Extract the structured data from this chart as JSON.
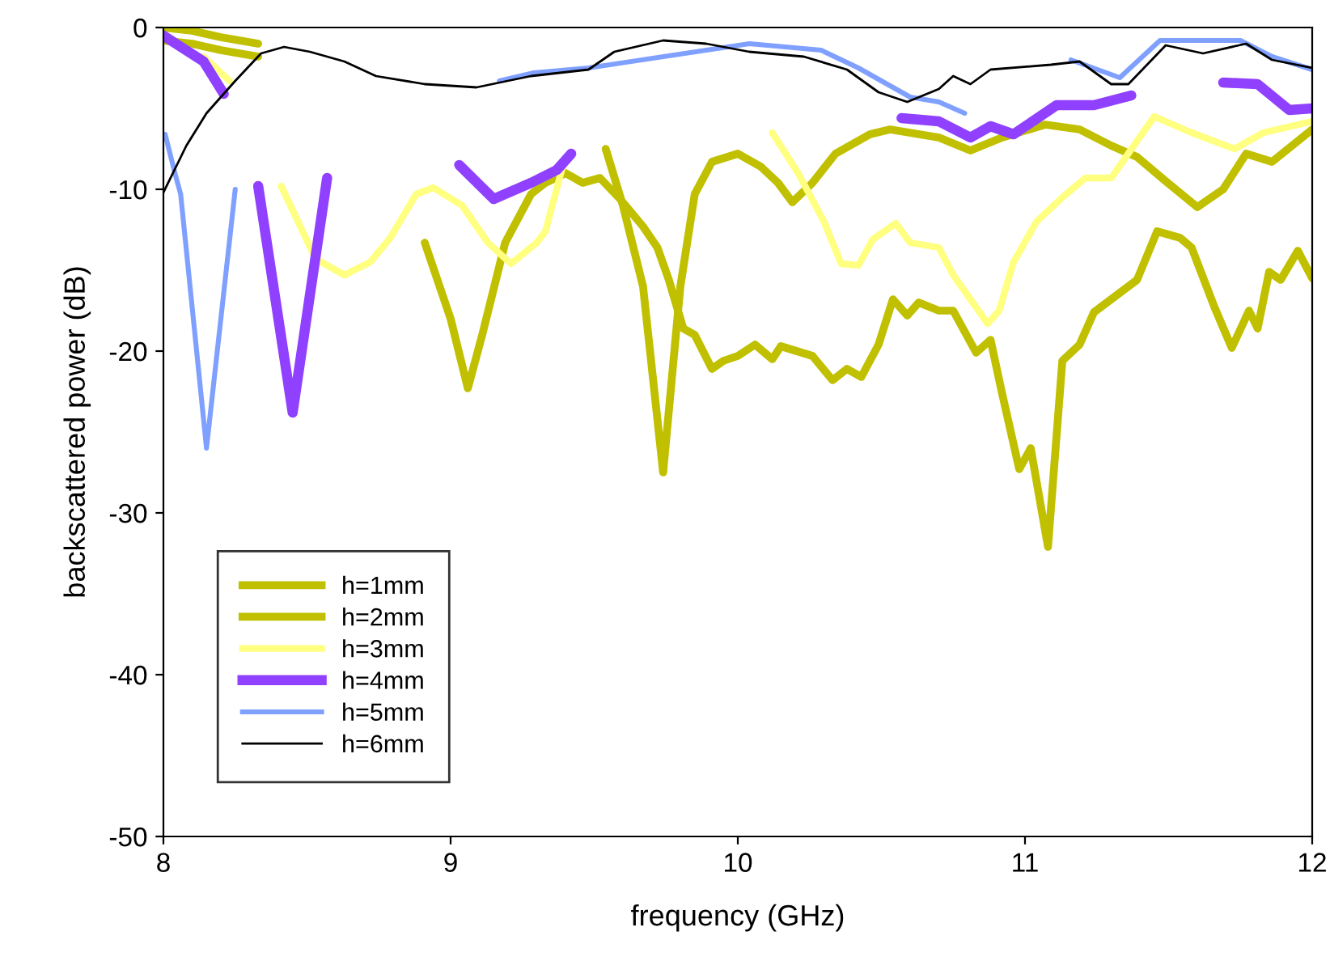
{
  "chart_data": {
    "type": "line",
    "xlabel": "frequency (GHz)",
    "ylabel": "backscattered power (dB)",
    "xlim": [
      8,
      12
    ],
    "ylim": [
      -50,
      0
    ],
    "xticks": [
      8,
      9,
      10,
      11,
      12
    ],
    "yticks": [
      -50,
      -40,
      -30,
      -20,
      -10,
      0
    ],
    "grid": false,
    "legend": "bottom left",
    "marker": "none",
    "line_style": "solid",
    "series": [
      {
        "name": "h=1mm",
        "color": "#c0c000",
        "x": [
          8.0,
          8.1,
          8.2,
          8.33,
          8.77,
          8.91,
          9.0,
          9.06,
          9.11,
          9.19,
          9.28,
          9.33,
          9.4,
          9.46,
          9.52,
          9.59,
          9.67,
          9.72,
          9.76,
          9.81,
          9.85,
          9.91,
          9.95,
          10.0,
          10.06,
          10.12,
          10.15,
          10.26,
          10.33,
          10.38,
          10.43,
          10.49,
          10.54,
          10.59,
          10.63,
          10.7,
          10.75,
          10.83,
          10.88,
          10.92,
          10.98,
          11.02,
          11.08,
          11.13,
          11.19,
          11.24,
          11.3,
          11.39,
          11.46,
          11.54,
          11.58,
          11.66,
          11.72,
          11.78,
          11.81,
          11.85,
          11.89,
          11.95,
          12.0
        ],
        "values": [
          0,
          -0.2,
          -0.6,
          -1.0,
          null,
          -13.3,
          -18.0,
          -22.3,
          -19.0,
          -13.3,
          -10.3,
          -9.6,
          -9.0,
          -9.6,
          -9.3,
          -10.6,
          -12.3,
          -13.6,
          -15.6,
          -18.6,
          -19.0,
          -21.1,
          -20.6,
          -20.3,
          -19.6,
          -20.5,
          -19.7,
          -20.3,
          -21.8,
          -21.1,
          -21.6,
          -19.6,
          -16.8,
          -17.8,
          -17.0,
          -17.5,
          -17.5,
          -20.1,
          -19.3,
          -22.6,
          -27.3,
          -26.0,
          -32.1,
          -20.6,
          -19.6,
          -17.6,
          -16.8,
          -15.6,
          -12.6,
          -13.0,
          -13.6,
          -17.3,
          -19.8,
          -17.5,
          -18.6,
          -15.1,
          -15.6,
          -13.8,
          -15.5
        ]
      },
      {
        "name": "h=2mm",
        "color": "#c0c000",
        "x": [
          8.0,
          8.1,
          8.2,
          8.33,
          8.4,
          9.54,
          9.6,
          9.67,
          9.74,
          9.8,
          9.85,
          9.91,
          10.0,
          10.08,
          10.14,
          10.19,
          10.26,
          10.34,
          10.46,
          10.53,
          10.7,
          10.81,
          10.92,
          11.07,
          11.19,
          11.3,
          11.39,
          11.49,
          11.6,
          11.69,
          11.77,
          11.86,
          12.0
        ],
        "values": [
          -0.8,
          -1.0,
          -1.4,
          -1.8,
          null,
          -7.5,
          -11.0,
          -16.0,
          -27.5,
          -16.0,
          -10.3,
          -8.3,
          -7.8,
          -8.6,
          -9.6,
          -10.8,
          -9.6,
          -7.8,
          -6.6,
          -6.3,
          -6.8,
          -7.6,
          -6.8,
          -6.0,
          -6.3,
          -7.3,
          -8.0,
          -9.5,
          -11.1,
          -10.0,
          -7.8,
          -8.3,
          -6.3
        ]
      },
      {
        "name": "h=3mm",
        "color": "#ffff80",
        "x": [
          8.14,
          8.23,
          8.3,
          8.41,
          8.53,
          8.63,
          8.72,
          8.79,
          8.88,
          8.94,
          9.04,
          9.13,
          9.21,
          9.3,
          9.33,
          9.39,
          9.45,
          10.12,
          10.21,
          10.3,
          10.36,
          10.42,
          10.47,
          10.55,
          10.6,
          10.7,
          10.75,
          10.87,
          10.91,
          10.96,
          11.04,
          11.13,
          11.21,
          11.3,
          11.45,
          11.58,
          11.73,
          11.83,
          12.0
        ],
        "values": [
          -1.8,
          -3.3,
          null,
          -9.8,
          -14.3,
          -15.3,
          -14.5,
          -13.0,
          -10.3,
          -9.9,
          -11.0,
          -13.3,
          -14.6,
          -13.3,
          -12.6,
          -8.6,
          null,
          -6.5,
          -9.0,
          -12.0,
          -14.6,
          -14.7,
          -13.1,
          -12.1,
          -13.3,
          -13.6,
          -15.3,
          -18.3,
          -17.5,
          -14.5,
          -12.0,
          -10.5,
          -9.3,
          -9.3,
          -5.5,
          -6.5,
          -7.5,
          -6.5,
          -5.8
        ]
      },
      {
        "name": "h=4mm",
        "color": "#9040ff",
        "x": [
          8.0,
          8.14,
          8.21,
          8.27,
          8.33,
          8.45,
          8.57,
          8.8,
          9.03,
          9.15,
          9.28,
          9.37,
          9.42,
          9.5,
          10.57,
          10.7,
          10.81,
          10.88,
          10.96,
          11.11,
          11.24,
          11.37,
          11.5,
          11.69,
          11.81,
          11.92,
          12.0
        ],
        "values": [
          -0.5,
          -2.1,
          -4.1,
          null,
          -9.8,
          -23.8,
          -9.3,
          null,
          -8.5,
          -10.6,
          -9.6,
          -8.8,
          -7.8,
          null,
          -5.6,
          -5.8,
          -6.8,
          -6.1,
          -6.6,
          -4.8,
          -4.8,
          -4.2,
          null,
          -3.4,
          -3.5,
          -5.1,
          -5.0
        ]
      },
      {
        "name": "h=5mm",
        "color": "#80a0ff",
        "x": [
          8.006,
          8.04,
          8.06,
          8.15,
          8.25,
          8.7,
          9.17,
          9.29,
          9.48,
          10.04,
          10.29,
          10.42,
          10.6,
          10.7,
          10.79,
          10.9,
          11.16,
          11.33,
          11.47,
          11.75,
          11.86,
          12.0
        ],
        "values": [
          -6.6,
          -9.0,
          -10.3,
          -26.0,
          -10.0,
          null,
          -3.3,
          -2.8,
          -2.5,
          -1.0,
          -1.4,
          -2.5,
          -4.3,
          -4.6,
          -5.3,
          null,
          -2.0,
          -3.1,
          -0.8,
          -0.8,
          -1.8,
          -2.6
        ]
      },
      {
        "name": "h=6mm",
        "color": "#000000",
        "x": [
          8.0,
          8.08,
          8.15,
          8.25,
          8.34,
          8.42,
          8.51,
          8.63,
          8.74,
          8.91,
          9.09,
          9.28,
          9.48,
          9.57,
          9.74,
          9.89,
          10.04,
          10.23,
          10.38,
          10.49,
          10.59,
          10.7,
          10.75,
          10.81,
          10.88,
          11.09,
          11.19,
          11.3,
          11.36,
          11.49,
          11.62,
          11.77,
          11.86,
          12.0
        ],
        "values": [
          -10.2,
          -7.3,
          -5.3,
          -3.3,
          -1.6,
          -1.2,
          -1.5,
          -2.1,
          -3.0,
          -3.5,
          -3.7,
          -3.0,
          -2.6,
          -1.5,
          -0.8,
          -1.0,
          -1.5,
          -1.8,
          -2.6,
          -4.0,
          -4.6,
          -3.8,
          -3.0,
          -3.5,
          -2.6,
          -2.3,
          -2.1,
          -3.5,
          -3.5,
          -1.1,
          -1.6,
          -1.0,
          -2.0,
          -2.5
        ]
      }
    ]
  }
}
